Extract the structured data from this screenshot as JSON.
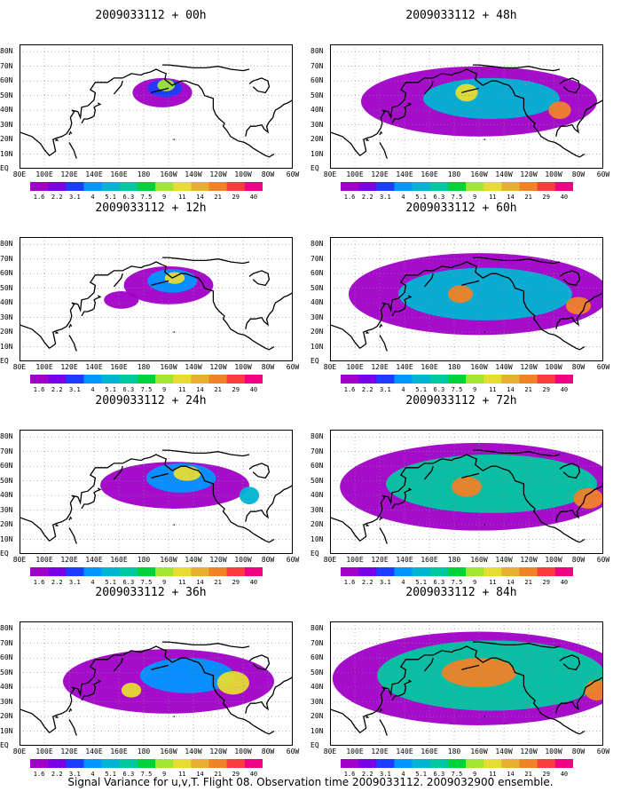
{
  "panels": [
    {
      "title": "2009033112 + 00h",
      "lead": 0
    },
    {
      "title": "2009033112 + 48h",
      "lead": 48
    },
    {
      "title": "2009033112 + 12h",
      "lead": 12
    },
    {
      "title": "2009033112 + 60h",
      "lead": 60
    },
    {
      "title": "2009033112 + 24h",
      "lead": 24
    },
    {
      "title": "2009033112 + 72h",
      "lead": 72
    },
    {
      "title": "2009033112 + 36h",
      "lead": 36
    },
    {
      "title": "2009033112 + 84h",
      "lead": 84
    }
  ],
  "lat_labels": [
    "80N",
    "70N",
    "60N",
    "50N",
    "40N",
    "30N",
    "20N",
    "10N",
    "EQ"
  ],
  "lon_labels": [
    "80E",
    "100E",
    "120E",
    "140E",
    "160E",
    "180",
    "160W",
    "140W",
    "120W",
    "100W",
    "80W",
    "60W"
  ],
  "colorbar": {
    "levels": [
      "1.6",
      "2.2",
      "3.1",
      "4",
      "5.1",
      "6.3",
      "7.5",
      "9",
      "11",
      "14",
      "21",
      "29",
      "40"
    ],
    "colors": [
      "#a000c8",
      "#7a00e6",
      "#1e3cff",
      "#0096ff",
      "#00b4d2",
      "#00c8a0",
      "#00d23c",
      "#a0e632",
      "#e6dc32",
      "#e6af2d",
      "#f08228",
      "#fa3c3c",
      "#f00082"
    ]
  },
  "footer": "Signal Variance for u,v,T. Flight 08. Observation time 2009033112. 2009032900 ensemble."
}
